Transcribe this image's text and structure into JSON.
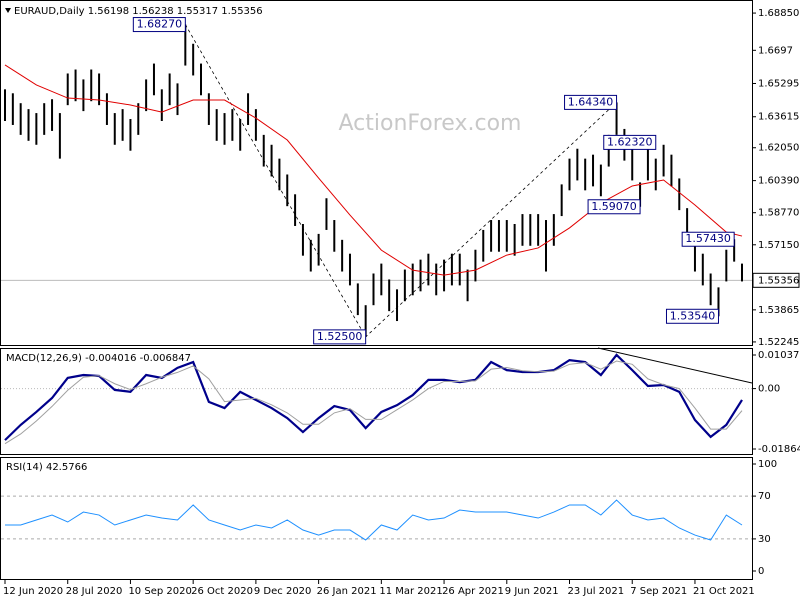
{
  "chart_data": [
    {
      "type": "hilo",
      "title": "EURAUD,Daily  1.56198 1.56238 1.55317 1.55356",
      "watermark": "ActionForex.com",
      "color": "#000000",
      "categories": [
        "12 Jun 2020",
        null,
        null,
        null,
        null,
        null,
        null,
        null,
        "28 Jul 2020",
        null,
        null,
        null,
        null,
        null,
        null,
        null,
        "10 Sep 2020",
        null,
        null,
        null,
        null,
        null,
        null,
        null,
        "26 Oct 2020",
        null,
        null,
        null,
        null,
        null,
        null,
        null,
        "9 Dec 2020",
        null,
        null,
        null,
        null,
        null,
        null,
        null,
        "26 Jan 2021",
        null,
        null,
        null,
        null,
        null,
        null,
        null,
        "11 Mar 2021",
        null,
        null,
        null,
        null,
        null,
        null,
        null,
        "26 Apr 2021",
        null,
        null,
        null,
        null,
        null,
        null,
        null,
        "9 Jun 2021",
        null,
        null,
        null,
        null,
        null,
        null,
        null,
        "23 Jul 2021",
        null,
        null,
        null,
        null,
        null,
        null,
        null,
        "7 Sep 2021",
        null,
        null,
        null,
        null,
        null,
        null,
        null,
        "21 Oct 2021",
        null,
        null,
        null,
        null,
        null,
        null
      ],
      "high": [
        1.65,
        1.648,
        1.643,
        1.64,
        1.638,
        1.643,
        1.645,
        1.638,
        1.658,
        1.66,
        1.655,
        1.66,
        1.658,
        1.648,
        1.638,
        1.64,
        1.635,
        1.643,
        1.655,
        1.663,
        1.65,
        1.658,
        1.653,
        1.6827,
        1.673,
        1.663,
        1.648,
        1.64,
        1.638,
        1.64,
        1.635,
        1.648,
        1.64,
        1.627,
        1.622,
        1.615,
        1.607,
        1.597,
        1.582,
        1.574,
        1.577,
        1.595,
        1.584,
        1.574,
        1.567,
        1.552,
        1.541,
        1.557,
        1.562,
        1.554,
        1.549,
        1.559,
        1.562,
        1.564,
        1.567,
        1.562,
        1.564,
        1.567,
        1.567,
        1.559,
        1.569,
        1.579,
        1.584,
        1.584,
        1.584,
        1.582,
        1.587,
        1.587,
        1.587,
        1.584,
        1.587,
        1.602,
        1.615,
        1.62,
        1.615,
        1.617,
        1.612,
        1.627,
        1.6434,
        1.63,
        1.62,
        1.603,
        1.62,
        1.615,
        1.622,
        1.617,
        1.605,
        1.59,
        1.574,
        1.567,
        1.557,
        1.55,
        1.569,
        1.5743,
        1.562
      ],
      "low": [
        1.634,
        1.632,
        1.627,
        1.624,
        1.622,
        1.627,
        1.629,
        1.615,
        1.642,
        1.644,
        1.639,
        1.644,
        1.642,
        1.632,
        1.622,
        1.624,
        1.619,
        1.627,
        1.639,
        1.647,
        1.634,
        1.642,
        1.637,
        1.662,
        1.657,
        1.647,
        1.632,
        1.624,
        1.622,
        1.624,
        1.619,
        1.632,
        1.624,
        1.611,
        1.606,
        1.599,
        1.591,
        1.581,
        1.566,
        1.558,
        1.561,
        1.579,
        1.568,
        1.558,
        1.551,
        1.536,
        1.525,
        1.541,
        1.546,
        1.538,
        1.533,
        1.543,
        1.546,
        1.548,
        1.551,
        1.546,
        1.548,
        1.551,
        1.551,
        1.543,
        1.553,
        1.563,
        1.568,
        1.568,
        1.568,
        1.566,
        1.571,
        1.571,
        1.571,
        1.558,
        1.571,
        1.586,
        1.599,
        1.604,
        1.599,
        1.601,
        1.596,
        1.611,
        1.627,
        1.614,
        1.604,
        1.5907,
        1.604,
        1.599,
        1.606,
        1.601,
        1.589,
        1.574,
        1.558,
        1.551,
        1.541,
        1.5354,
        1.553,
        1.563,
        1.553
      ],
      "ma": {
        "color": "#e00000",
        "x": [
          0,
          4,
          8,
          12,
          16,
          20,
          24,
          28,
          32,
          36,
          40,
          44,
          48,
          52,
          56,
          60,
          64,
          68,
          72,
          76,
          80,
          84,
          88,
          92,
          94
        ],
        "values": [
          1.6623,
          1.6522,
          1.6456,
          1.6446,
          1.6421,
          1.6385,
          1.6446,
          1.6446,
          1.6355,
          1.6244,
          1.6052,
          1.5865,
          1.5688,
          1.5587,
          1.5562,
          1.5587,
          1.5663,
          1.5699,
          1.58,
          1.5926,
          1.6012,
          1.6042,
          1.5916,
          1.5779,
          1.5759
        ]
      },
      "ylim": [
        1.5209,
        1.6951
      ],
      "yticks": [
        {
          "value": 1.6885,
          "label": "1.68850"
        },
        1.6697,
        1.65295,
        1.63615,
        {
          "value": 1.6205,
          "label": "1.62050"
        },
        {
          "value": 1.6039,
          "label": "1.60390"
        },
        {
          "value": 1.5877,
          "label": "1.58770"
        },
        {
          "value": 1.5715,
          "label": "1.57150"
        },
        1.53865,
        1.52245
      ],
      "last": 1.55356,
      "annotations": [
        {
          "value": 1.6827,
          "label": "1.68270"
        },
        {
          "value": 1.525,
          "label": "1.52500"
        },
        {
          "value": 1.6434,
          "label": "1.64340"
        },
        {
          "value": 1.6232,
          "label": "1.62320"
        },
        {
          "value": 1.5907,
          "label": "1.59070"
        },
        {
          "value": 1.5743,
          "label": "1.57430"
        },
        {
          "value": 1.5354,
          "label": "1.53540"
        }
      ]
    },
    {
      "type": "line",
      "title": "MACD(12,26,9) -0.004016 -0.006847",
      "x": [
        0,
        2,
        4,
        6,
        8,
        10,
        12,
        14,
        16,
        18,
        20,
        22,
        24,
        26,
        28,
        30,
        32,
        34,
        36,
        38,
        40,
        42,
        44,
        46,
        48,
        50,
        52,
        54,
        56,
        58,
        60,
        62,
        64,
        66,
        68,
        70,
        72,
        74,
        76,
        78,
        80,
        82,
        84,
        86,
        88,
        90,
        92,
        94
      ],
      "series": [
        {
          "color": "#00008b",
          "width": 2.2,
          "values": [
            -0.0159,
            -0.0112,
            -0.0072,
            -0.0029,
            0.0033,
            0.0042,
            0.0039,
            -0.0004,
            -0.001,
            0.0042,
            0.0033,
            0.0064,
            0.0082,
            -0.0041,
            -0.006,
            -0.001,
            -0.0035,
            -0.006,
            -0.0091,
            -0.0134,
            -0.0091,
            -0.0054,
            -0.0066,
            -0.0122,
            -0.0072,
            -0.0051,
            -0.002,
            0.0027,
            0.0027,
            0.002,
            0.0027,
            0.0082,
            0.0057,
            0.0051,
            0.0051,
            0.0057,
            0.0088,
            0.0082,
            0.0042,
            0.0104,
            0.0057,
            0.0008,
            0.0011,
            -0.001,
            -0.0097,
            -0.0149,
            -0.0112,
            -0.0035
          ]
        },
        {
          "color": "#a0a0a0",
          "width": 1,
          "values": [
            -0.017,
            -0.014,
            -0.01,
            -0.0055,
            -0.0005,
            0.0035,
            0.004,
            0.0015,
            -0.0003,
            0.0015,
            0.0035,
            0.005,
            0.007,
            0.003,
            -0.004,
            -0.0035,
            -0.003,
            -0.005,
            -0.0075,
            -0.011,
            -0.011,
            -0.0075,
            -0.0062,
            -0.0095,
            -0.0095,
            -0.0065,
            -0.0035,
            0.0,
            0.0022,
            0.0022,
            0.0024,
            0.006,
            0.0065,
            0.0055,
            0.0052,
            0.0054,
            0.0075,
            0.008,
            0.006,
            0.0085,
            0.0075,
            0.003,
            0.0012,
            0.0,
            -0.006,
            -0.0125,
            -0.0125,
            -0.0068
          ]
        }
      ],
      "ylim": [
        -0.020495,
        0.012534
      ],
      "yticks": [
        0.010373,
        {
          "value": 0,
          "label": "0.00"
        },
        -0.018643
      ]
    },
    {
      "type": "line",
      "title": "RSI(14) 42.5766",
      "x": [
        0,
        2,
        4,
        6,
        8,
        10,
        12,
        14,
        16,
        18,
        20,
        22,
        24,
        26,
        28,
        30,
        32,
        34,
        36,
        38,
        40,
        42,
        44,
        46,
        48,
        50,
        52,
        54,
        56,
        58,
        60,
        62,
        64,
        66,
        68,
        70,
        72,
        74,
        76,
        78,
        80,
        82,
        84,
        86,
        88,
        90,
        92,
        94
      ],
      "series": [
        {
          "color": "#1e90ff",
          "width": 1,
          "values": [
            43.0,
            43.0,
            47.7,
            52.3,
            45.8,
            55.1,
            52.3,
            43.0,
            47.7,
            52.3,
            49.5,
            47.7,
            61.7,
            47.7,
            43.0,
            38.3,
            43.0,
            40.2,
            47.7,
            38.3,
            33.6,
            38.3,
            38.3,
            29.0,
            43.0,
            38.3,
            52.3,
            47.7,
            49.5,
            57.0,
            55.1,
            55.1,
            55.1,
            52.3,
            49.5,
            55.1,
            61.7,
            61.7,
            52.3,
            66.3,
            52.3,
            47.7,
            49.5,
            40.2,
            33.6,
            29.0,
            52.3,
            43.0
          ]
        }
      ],
      "ylim": [
        -8.4,
        105.6
      ],
      "yticks": [
        100,
        70,
        30,
        0
      ]
    }
  ]
}
